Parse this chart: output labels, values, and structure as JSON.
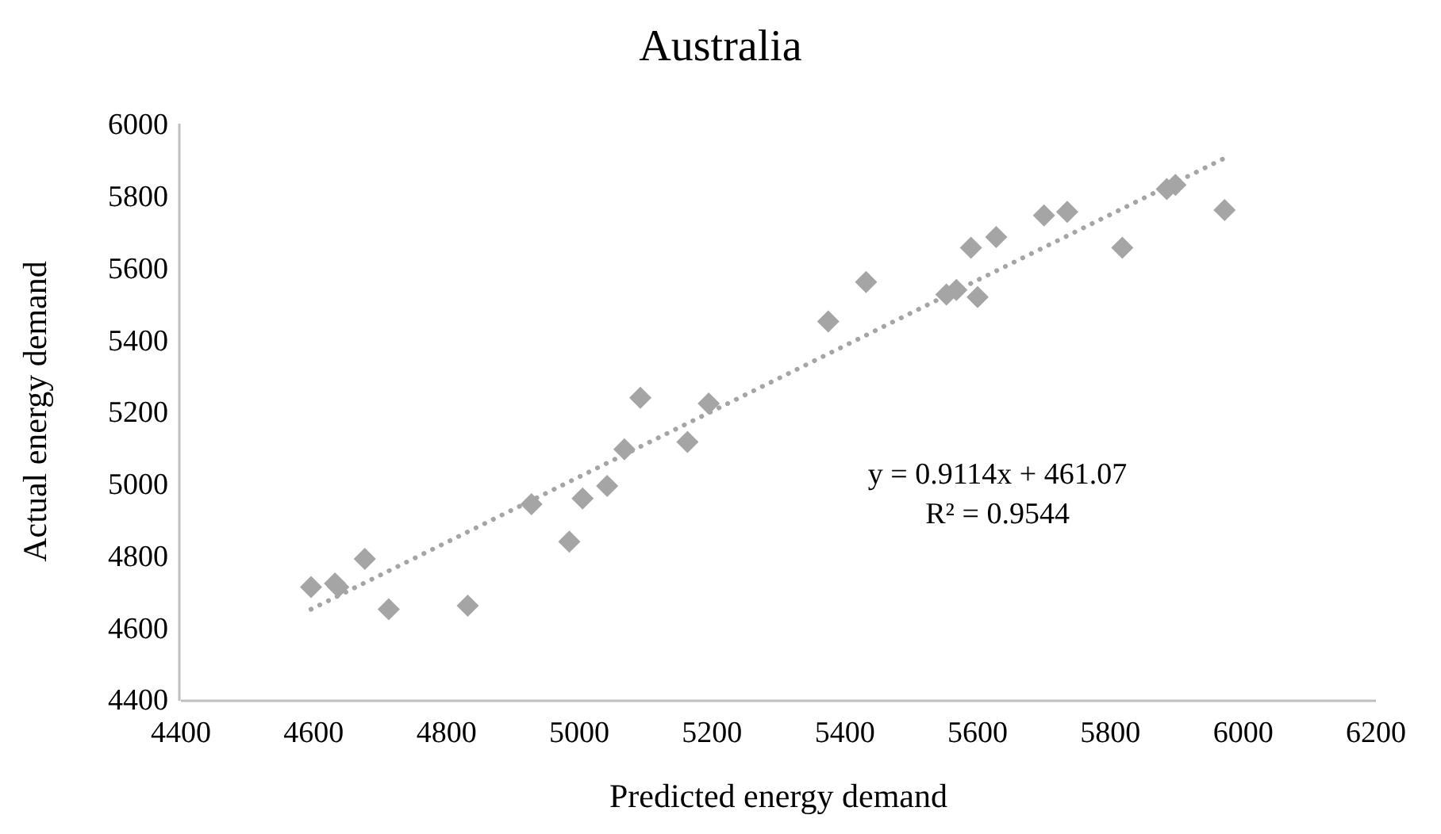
{
  "chart_data": {
    "type": "scatter",
    "title": "Australia",
    "xlabel": "Predicted energy demand",
    "ylabel": "Actual energy demand",
    "xlim": [
      4400,
      6200
    ],
    "xticks": [
      4400,
      4600,
      4800,
      5000,
      5200,
      5400,
      5600,
      5800,
      6000,
      6200
    ],
    "ylim": [
      4400,
      6000
    ],
    "yticks": [
      4400,
      4600,
      4800,
      5000,
      5200,
      5400,
      5600,
      5800,
      6000
    ],
    "grid": false,
    "marker": "diamond",
    "annotations": [
      "y = 0.9114x + 461.07",
      "R² = 0.9544"
    ],
    "series": [
      {
        "color": "#a5a5a5",
        "x": [
          4596,
          4632,
          4637,
          4677,
          4713,
          4832,
          4928,
          4985,
          5005,
          5042,
          5068,
          5092,
          5163,
          5195,
          5375,
          5432,
          5553,
          5568,
          5600,
          5590,
          5628,
          5700,
          5735,
          5818,
          5885,
          5898,
          5972
        ],
        "values": [
          4712,
          4722,
          4712,
          4790,
          4650,
          4660,
          4942,
          4838,
          4958,
          4993,
          5095,
          5238,
          5115,
          5222,
          5450,
          5560,
          5525,
          5538,
          5518,
          5655,
          5685,
          5745,
          5755,
          5655,
          5818,
          5830,
          5760
        ]
      },
      {
        "type": "line",
        "color": "#a5a5a5",
        "line_style": "dotted",
        "marker": "none",
        "x": [
          4596,
          5972
        ],
        "values": [
          4650,
          5904
        ]
      }
    ]
  }
}
